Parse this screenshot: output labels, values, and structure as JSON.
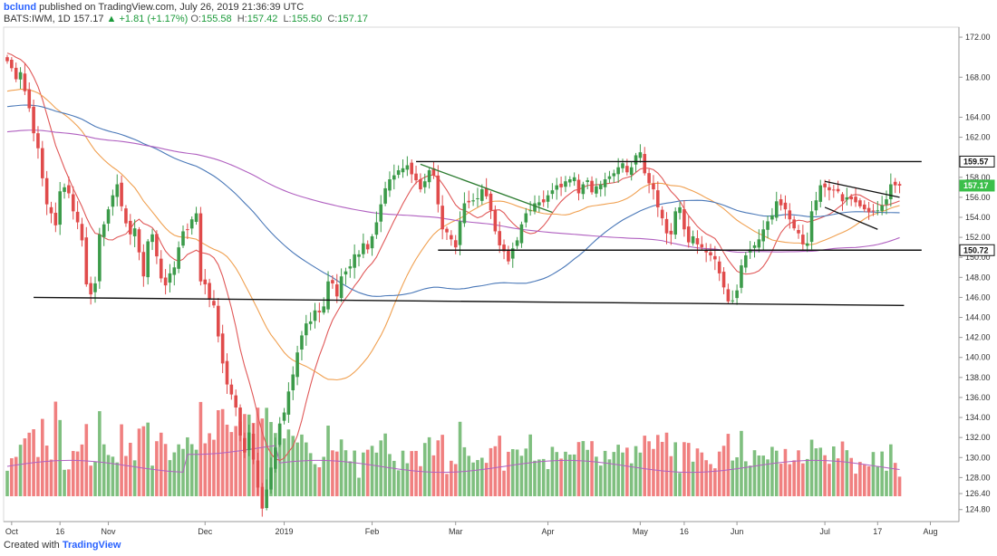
{
  "header": {
    "user": "bclund",
    "published_text": "published on TradingView.com, July 26, 2019 21:36:39 UTC",
    "symbol": "BATS:IWM, 1D",
    "last": "157.17",
    "change": "▲ +1.81 (+1.17%)",
    "o_label": "O:",
    "o_value": "155.58",
    "h_label": "H:",
    "h_value": "157.42",
    "l_label": "L:",
    "l_value": "155.50",
    "c_label": "C:",
    "c_value": "157.17"
  },
  "footer": {
    "created_with": "Created with",
    "brand": "TradingView"
  },
  "colors": {
    "up": "#3c9b4a",
    "down": "#e04b4b",
    "vol_up": "#7fbf7f",
    "vol_down": "#f08080",
    "ma_fast": "#e05858",
    "ma_mid": "#f0a050",
    "ma_slow": "#4a78b8",
    "ma_long": "#b060c0",
    "trend_green": "#2e7d32",
    "line": "#111111"
  },
  "chart_data": {
    "type": "candlestick",
    "symbol": "BATS:IWM",
    "interval": "1D",
    "ylim": [
      123.6,
      173.0
    ],
    "y_ticks": [
      124.8,
      126.4,
      128,
      130,
      132,
      134,
      136,
      138,
      140,
      142,
      144,
      146,
      148,
      150,
      152,
      154,
      156,
      158,
      162,
      164,
      168,
      172
    ],
    "y_tick_labels": [
      "124.80",
      "126.40",
      "128.00",
      "130.00",
      "132.00",
      "134.00",
      "136.00",
      "138.00",
      "140.00",
      "142.00",
      "144.00",
      "146.00",
      "148.00",
      "150.00",
      "152.00",
      "154.00",
      "156.00",
      "158.00",
      "162.00",
      "164.00",
      "168.00",
      "172.00"
    ],
    "x_ticks": [
      {
        "label": "Oct",
        "bar": 1
      },
      {
        "label": "16",
        "bar": 12
      },
      {
        "label": "Nov",
        "bar": 23
      },
      {
        "label": "Dec",
        "bar": 45
      },
      {
        "label": "2019",
        "bar": 63
      },
      {
        "label": "Feb",
        "bar": 83
      },
      {
        "label": "Mar",
        "bar": 102
      },
      {
        "label": "Apr",
        "bar": 123
      },
      {
        "label": "May",
        "bar": 144
      },
      {
        "label": "16",
        "bar": 154
      },
      {
        "label": "Jun",
        "bar": 166
      },
      {
        "label": "Jul",
        "bar": 186
      },
      {
        "label": "17",
        "bar": 198
      },
      {
        "label": "Aug",
        "bar": 210
      }
    ],
    "price_tags": [
      {
        "label": "159.57",
        "value": 159.57,
        "style": "black"
      },
      {
        "label": "157.17",
        "value": 157.17,
        "style": "green"
      },
      {
        "label": "150.72",
        "value": 150.72,
        "style": "black"
      }
    ],
    "closes": [
      169.6,
      168.9,
      167.8,
      168.5,
      166.6,
      164.9,
      162.4,
      160.9,
      157.9,
      155.3,
      154.4,
      153.2,
      156.6,
      157.0,
      156.4,
      154.6,
      153.5,
      151.7,
      147.3,
      146.3,
      147.4,
      152.3,
      153.3,
      154.8,
      156.2,
      157.3,
      155.1,
      153.4,
      152.3,
      152.9,
      150.5,
      148.1,
      151.6,
      152.3,
      150.1,
      147.9,
      147.2,
      148.4,
      149.0,
      151.0,
      152.6,
      152.8,
      153.8,
      154.4,
      147.6,
      147.3,
      145.9,
      145.2,
      142.1,
      139.4,
      137.3,
      136.3,
      135.0,
      132.2,
      130.5,
      132.5,
      129.8,
      127.0,
      124.9,
      126.8,
      129.0,
      131.0,
      133.4,
      134.5,
      136.6,
      138.3,
      140.5,
      142.2,
      143.4,
      143.6,
      144.7,
      144.5,
      145.1,
      147.6,
      147.4,
      146.1,
      148.1,
      148.6,
      149.1,
      150.3,
      150.3,
      151.4,
      150.8,
      152.1,
      153.5,
      155.3,
      156.9,
      157.8,
      158.2,
      158.7,
      158.9,
      159.2,
      158.3,
      157.7,
      156.8,
      157.6,
      158.7,
      158.2,
      155.3,
      152.8,
      152.5,
      151.8,
      151.0,
      153.6,
      155.4,
      155.5,
      155.7,
      155.9,
      156.8,
      156.1,
      154.7,
      152.6,
      151.2,
      150.6,
      149.6,
      150.9,
      151.7,
      153.3,
      154.4,
      154.7,
      155.4,
      155.5,
      155.5,
      156.2,
      156.7,
      157.2,
      157.0,
      157.6,
      157.8,
      158.0,
      156.4,
      157.3,
      157.7,
      156.5,
      157.1,
      157.3,
      157.8,
      158.1,
      158.4,
      159.0,
      159.4,
      158.5,
      159.0,
      160.2,
      160.5,
      158.4,
      157.4,
      156.8,
      155.0,
      153.9,
      152.4,
      152.3,
      154.6,
      155.0,
      152.8,
      151.5,
      152.1,
      151.3,
      151.0,
      150.5,
      150.2,
      149.8,
      148.4,
      147.0,
      145.6,
      145.7,
      146.7,
      149.2,
      150.2,
      150.8,
      151.2,
      151.8,
      152.8,
      153.6,
      154.2,
      155.6,
      155.2,
      154.8,
      153.8,
      152.9,
      152.4,
      151.3,
      151.4,
      154.6,
      155.7,
      157.2,
      157.0,
      156.7,
      156.7,
      156.6,
      155.6,
      156.0,
      155.8,
      155.5,
      155.1,
      154.8,
      154.5,
      154.6,
      154.7,
      155.2,
      155.8,
      157.3,
      157.2,
      157.17
    ],
    "support_resistance_lines": [
      {
        "from_bar": 93,
        "to_bar": 208,
        "start": 159.57,
        "end": 159.57
      },
      {
        "from_bar": 98,
        "to_bar": 208,
        "start": 150.72,
        "end": 150.72
      },
      {
        "from_bar": 6,
        "to_bar": 204,
        "start": 146.0,
        "end": 145.2
      }
    ],
    "trend_lines": [
      {
        "from_bar": 94,
        "to_bar": 124,
        "start": 159.3,
        "end": 154.5,
        "color": "green"
      },
      {
        "from_bar": 186,
        "to_bar": 203,
        "start": 157.6,
        "end": 156.0,
        "color": "black"
      },
      {
        "from_bar": 186,
        "to_bar": 198,
        "start": 155.0,
        "end": 152.8,
        "color": "black"
      }
    ],
    "moving_averages": [
      "fast",
      "mid",
      "slow",
      "long"
    ],
    "volume_panel": true
  }
}
